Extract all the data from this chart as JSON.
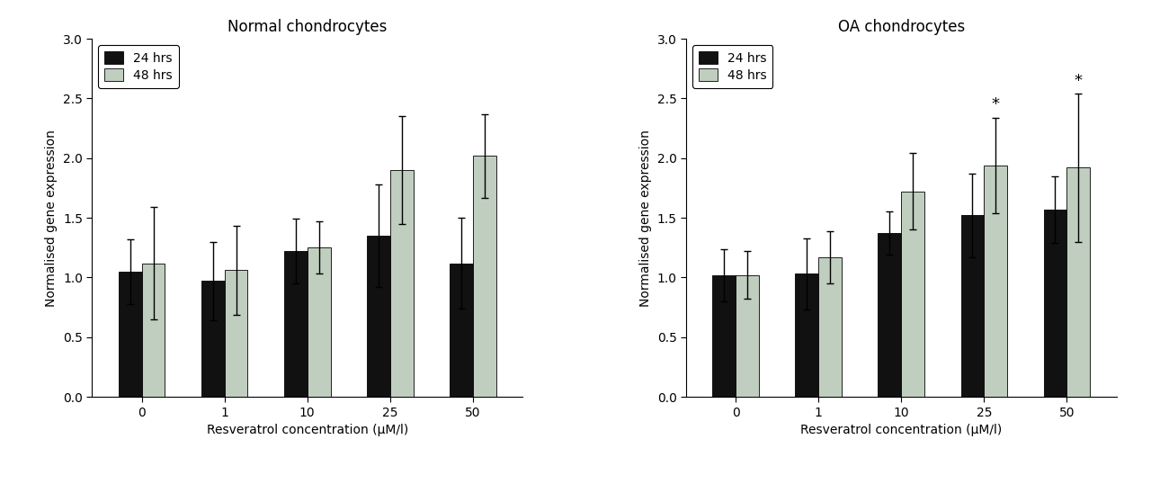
{
  "normal": {
    "title": "Normal chondrocytes",
    "categories": [
      "0",
      "1",
      "10",
      "25",
      "50"
    ],
    "hrs24_mean": [
      1.05,
      0.97,
      1.22,
      1.35,
      1.12
    ],
    "hrs24_err": [
      0.27,
      0.33,
      0.27,
      0.43,
      0.38
    ],
    "hrs48_mean": [
      1.12,
      1.06,
      1.25,
      1.9,
      2.02
    ],
    "hrs48_err": [
      0.47,
      0.37,
      0.22,
      0.45,
      0.35
    ],
    "significant_24": [],
    "significant_48": []
  },
  "oa": {
    "title": "OA chondrocytes",
    "categories": [
      "0",
      "1",
      "10",
      "25",
      "50"
    ],
    "hrs24_mean": [
      1.02,
      1.03,
      1.37,
      1.52,
      1.57
    ],
    "hrs24_err": [
      0.22,
      0.3,
      0.18,
      0.35,
      0.28
    ],
    "hrs48_mean": [
      1.02,
      1.17,
      1.72,
      1.94,
      1.92
    ],
    "hrs48_err": [
      0.2,
      0.22,
      0.32,
      0.4,
      0.62
    ],
    "significant_24": [],
    "significant_48": [
      3,
      4
    ]
  },
  "color_24hrs": "#111111",
  "color_48hrs": "#c0cec0",
  "ylabel": "Normalised gene expression",
  "xlabel": "Resveratrol concentration (μM/l)",
  "ylim": [
    0,
    3.0
  ],
  "yticks": [
    0,
    0.5,
    1.0,
    1.5,
    2.0,
    2.5,
    3.0
  ],
  "bar_width": 0.28,
  "legend_labels": [
    "24 hrs",
    "48 hrs"
  ],
  "sig_marker": "*",
  "background_color": "#ffffff",
  "title_fontsize": 12,
  "label_fontsize": 10,
  "tick_fontsize": 10,
  "legend_fontsize": 10
}
